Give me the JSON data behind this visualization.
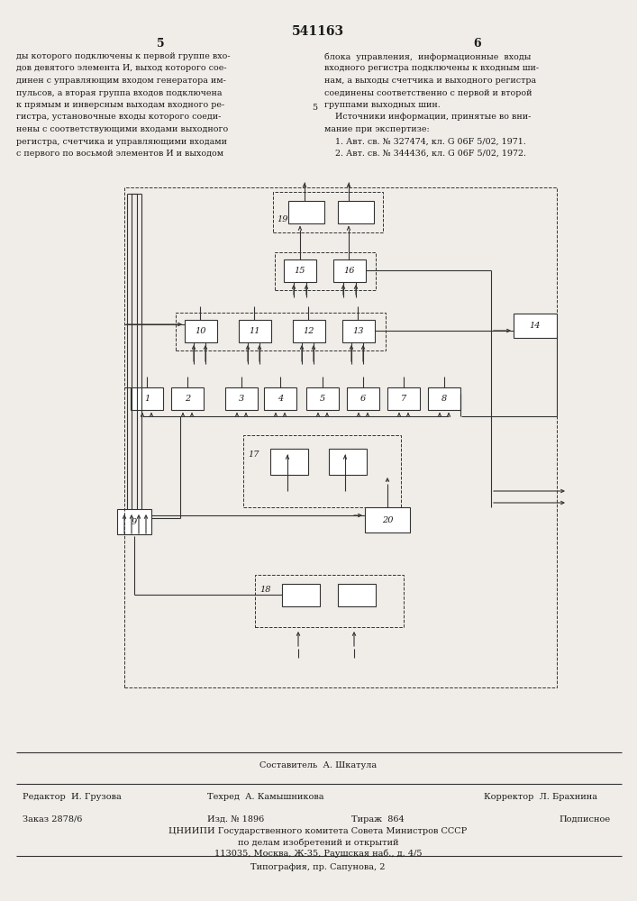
{
  "page_bg": "#f0ede8",
  "text_color": "#1a1a1a",
  "header_patent": "541163",
  "header_col5": "5",
  "header_col6": "6",
  "col5_text": "ды которого подключены к первой группе вхо-\nдов девятого элемента И, выход которого сое-\nдинен с управляющим входом генератора им-\nпульсов, а вторая группа входов подключена\nк прямым и инверсным выходам входного ре-\nгистра, установочные входы которого соеди-\nнены с соответствующими входами выходного\nрегистра, счетчика и управляющими входами\nс первого по восьмой элементов И и выходом",
  "col6_text": "блока  управления,  информационные  входы\nвходного регистра подключены к входным ши-\nнам, а выходы счетчика и выходного регистра\nсоединены соответственно с первой и второй\nгруппами выходных шин.\n    Источники информации, принятые во вни-\nмание при экспертизе:\n    1. Авт. св. № 327474, кл. G 06F 5/02, 1971.\n    2. Авт. св. № 344436, кл. G 06F 5/02, 1972.",
  "col6_num5": "5",
  "footer_line1": "Составитель  А. Шкатула",
  "footer_editor": "Редактор  И. Грузова",
  "footer_tech": "Техред  А. Камышникова",
  "footer_correct": "Корректор  Л. Брахнина",
  "footer_order": "Заказ 2878/6",
  "footer_izd": "Изд. № 1896",
  "footer_tirazh": "Тираж  864",
  "footer_podpis": "Подписное",
  "footer_org": "ЦНИИПИ Государственного комитета Совета Министров СССР",
  "footer_org2": "по делам изобретений и открытий",
  "footer_addr": "113035, Москва, Ж-35, Раушская наб., д. 4/5",
  "footer_typo": "Типография, пр. Сапунова, 2",
  "box_color": "#333333",
  "box_fill": "#ffffff",
  "wire_color": "#333333"
}
